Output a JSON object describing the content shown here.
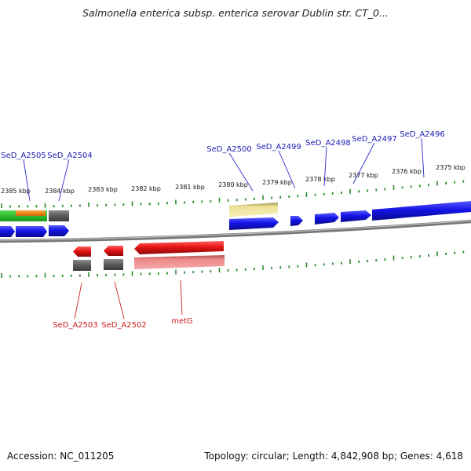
{
  "title": "Salmonella enterica subsp. enterica serovar Dublin str. CT_0...",
  "footer": {
    "accession": "Accession: NC_011205",
    "summary": "Topology: circular; Length: 4,842,908 bp; Genes: 4,618"
  },
  "colors": {
    "forward_gene": "#1414e6",
    "reverse_gene": "#e61414",
    "forward_label": "#1a1ab3",
    "reverse_label": "#cc1a1a",
    "tick": "#2e8b2e",
    "backbone": "#7a7a7a",
    "cds_gray": "#5a5a5a",
    "cds_yellow": "#efe29a",
    "rna_green": "#22bb22",
    "rna_orange": "#ee8811",
    "cds_pink": "#ee8888"
  },
  "scale_ticks": [
    {
      "label": "2385 kbp"
    },
    {
      "label": "2384 kbp"
    },
    {
      "label": "2383 kbp"
    },
    {
      "label": "2382 kbp"
    },
    {
      "label": "2381 kbp"
    },
    {
      "label": "2380 kbp"
    },
    {
      "label": "2379 kbp"
    },
    {
      "label": "2378 kbp"
    },
    {
      "label": "2377 kbp"
    },
    {
      "label": "2376 kbp"
    },
    {
      "label": "2375 kbp"
    }
  ],
  "forward_genes": [
    {
      "name": "SeD_A2505"
    },
    {
      "name": "SeD_A2504"
    },
    {
      "name": "SeD_A2500"
    },
    {
      "name": "SeD_A2499"
    },
    {
      "name": "SeD_A2498"
    },
    {
      "name": "SeD_A2497"
    },
    {
      "name": "SeD_A2496"
    }
  ],
  "reverse_genes": [
    {
      "name": "SeD_A2503"
    },
    {
      "name": "SeD_A2502"
    },
    {
      "name": "metG"
    }
  ]
}
